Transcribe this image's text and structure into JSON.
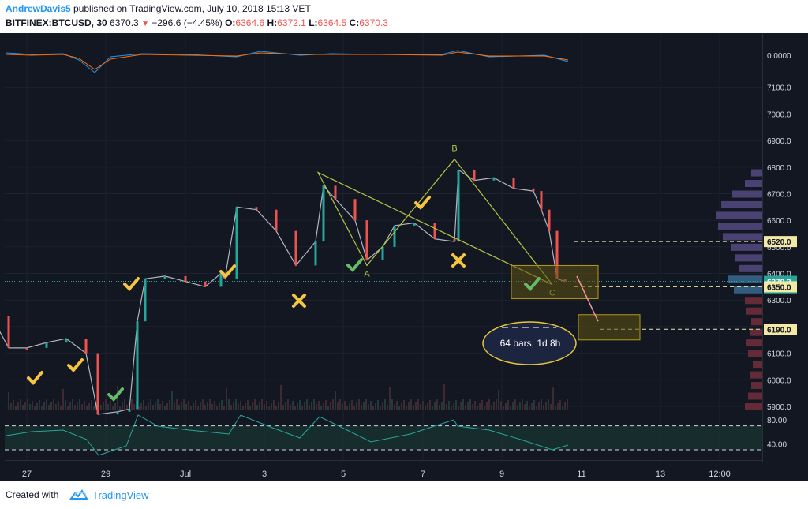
{
  "header": {
    "author": "AndrewDavis5",
    "published": " published on TradingView.com, July 10, 2018 15:13 VET",
    "symbol": "BITFINEX:BTCUSD, 30",
    "last": "6370.3",
    "change": "−296.6 (−4.45%)",
    "o_label": "O:",
    "o_value": "6364.6",
    "h_label": "H:",
    "h_value": "6372.1",
    "l_label": "L:",
    "l_value": "6364.5",
    "c_label": "C:",
    "c_value": "6370.3"
  },
  "footer": {
    "created": "Created with",
    "brand": "TradingView"
  },
  "colors": {
    "background": "#131722",
    "up": "#26a69a",
    "down": "#ef5350",
    "pattern": "#b5c446",
    "level": "#e8e8b0"
  },
  "chart_data": [
    {
      "type": "line",
      "name": "MACD oscillator",
      "y_ticks": [
        "0.0000"
      ],
      "axis_value": 0
    },
    {
      "type": "candlestick",
      "name": "BTCUSD 30m",
      "x_ticks": [
        "27",
        "29",
        "Jul",
        "3",
        "5",
        "7",
        "9",
        "11",
        "13",
        "12:00"
      ],
      "y_ticks": [
        5900,
        6000,
        6100,
        6200,
        6300,
        6400,
        6500,
        6600,
        6700,
        6800,
        6900,
        7000,
        7100
      ],
      "ylim": [
        5880,
        7150
      ],
      "approx_close": [
        [
          "26",
          6240
        ],
        [
          "26.5",
          6120
        ],
        [
          "27",
          6120
        ],
        [
          "27.5",
          6140
        ],
        [
          "28",
          6155
        ],
        [
          "28.5",
          6100
        ],
        [
          "28.8",
          5870
        ],
        [
          "29.3",
          5880
        ],
        [
          "29.6",
          5890
        ],
        [
          "29.8",
          6220
        ],
        [
          "30",
          6380
        ],
        [
          "30.5",
          6390
        ],
        [
          "Jul",
          6370
        ],
        [
          "1.5",
          6350
        ],
        [
          "1.9",
          6400
        ],
        [
          "2",
          6380
        ],
        [
          "2.3",
          6650
        ],
        [
          "2.8",
          6640
        ],
        [
          "3.3",
          6560
        ],
        [
          "3.8",
          6430
        ],
        [
          "4.3",
          6520
        ],
        [
          "4.5",
          6730
        ],
        [
          "4.8",
          6680
        ],
        [
          "5.3",
          6600
        ],
        [
          "5.6",
          6450
        ],
        [
          "6",
          6500
        ],
        [
          "6.3",
          6580
        ],
        [
          "6.8",
          6590
        ],
        [
          "7.3",
          6530
        ],
        [
          "7.8",
          6520
        ],
        [
          "7.9",
          6790
        ],
        [
          "8.3",
          6750
        ],
        [
          "8.8",
          6760
        ],
        [
          "9.3",
          6720
        ],
        [
          "9.8",
          6710
        ],
        [
          "10",
          6640
        ],
        [
          "10.2",
          6560
        ],
        [
          "10.4",
          6380
        ],
        [
          "10.6",
          6370.3
        ]
      ],
      "price_labels": [
        {
          "text": "6520.0",
          "value": 6520
        },
        {
          "text": "6370.3",
          "value": 6370.3
        },
        {
          "text": "16:51",
          "value": 6346
        },
        {
          "text": "6350.0",
          "value": 6350
        },
        {
          "text": "6190.0",
          "value": 6190
        }
      ],
      "pattern_points": [
        {
          "label": "A",
          "value": 6430
        },
        {
          "label": "B",
          "value": 6830
        },
        {
          "label": "C",
          "value": 6358
        }
      ],
      "annotations": [
        "64 bars, 1d 8h"
      ]
    },
    {
      "type": "line",
      "name": "RSI",
      "y_ticks": [
        80.0,
        40.0
      ],
      "ylim": [
        20,
        90
      ]
    }
  ]
}
